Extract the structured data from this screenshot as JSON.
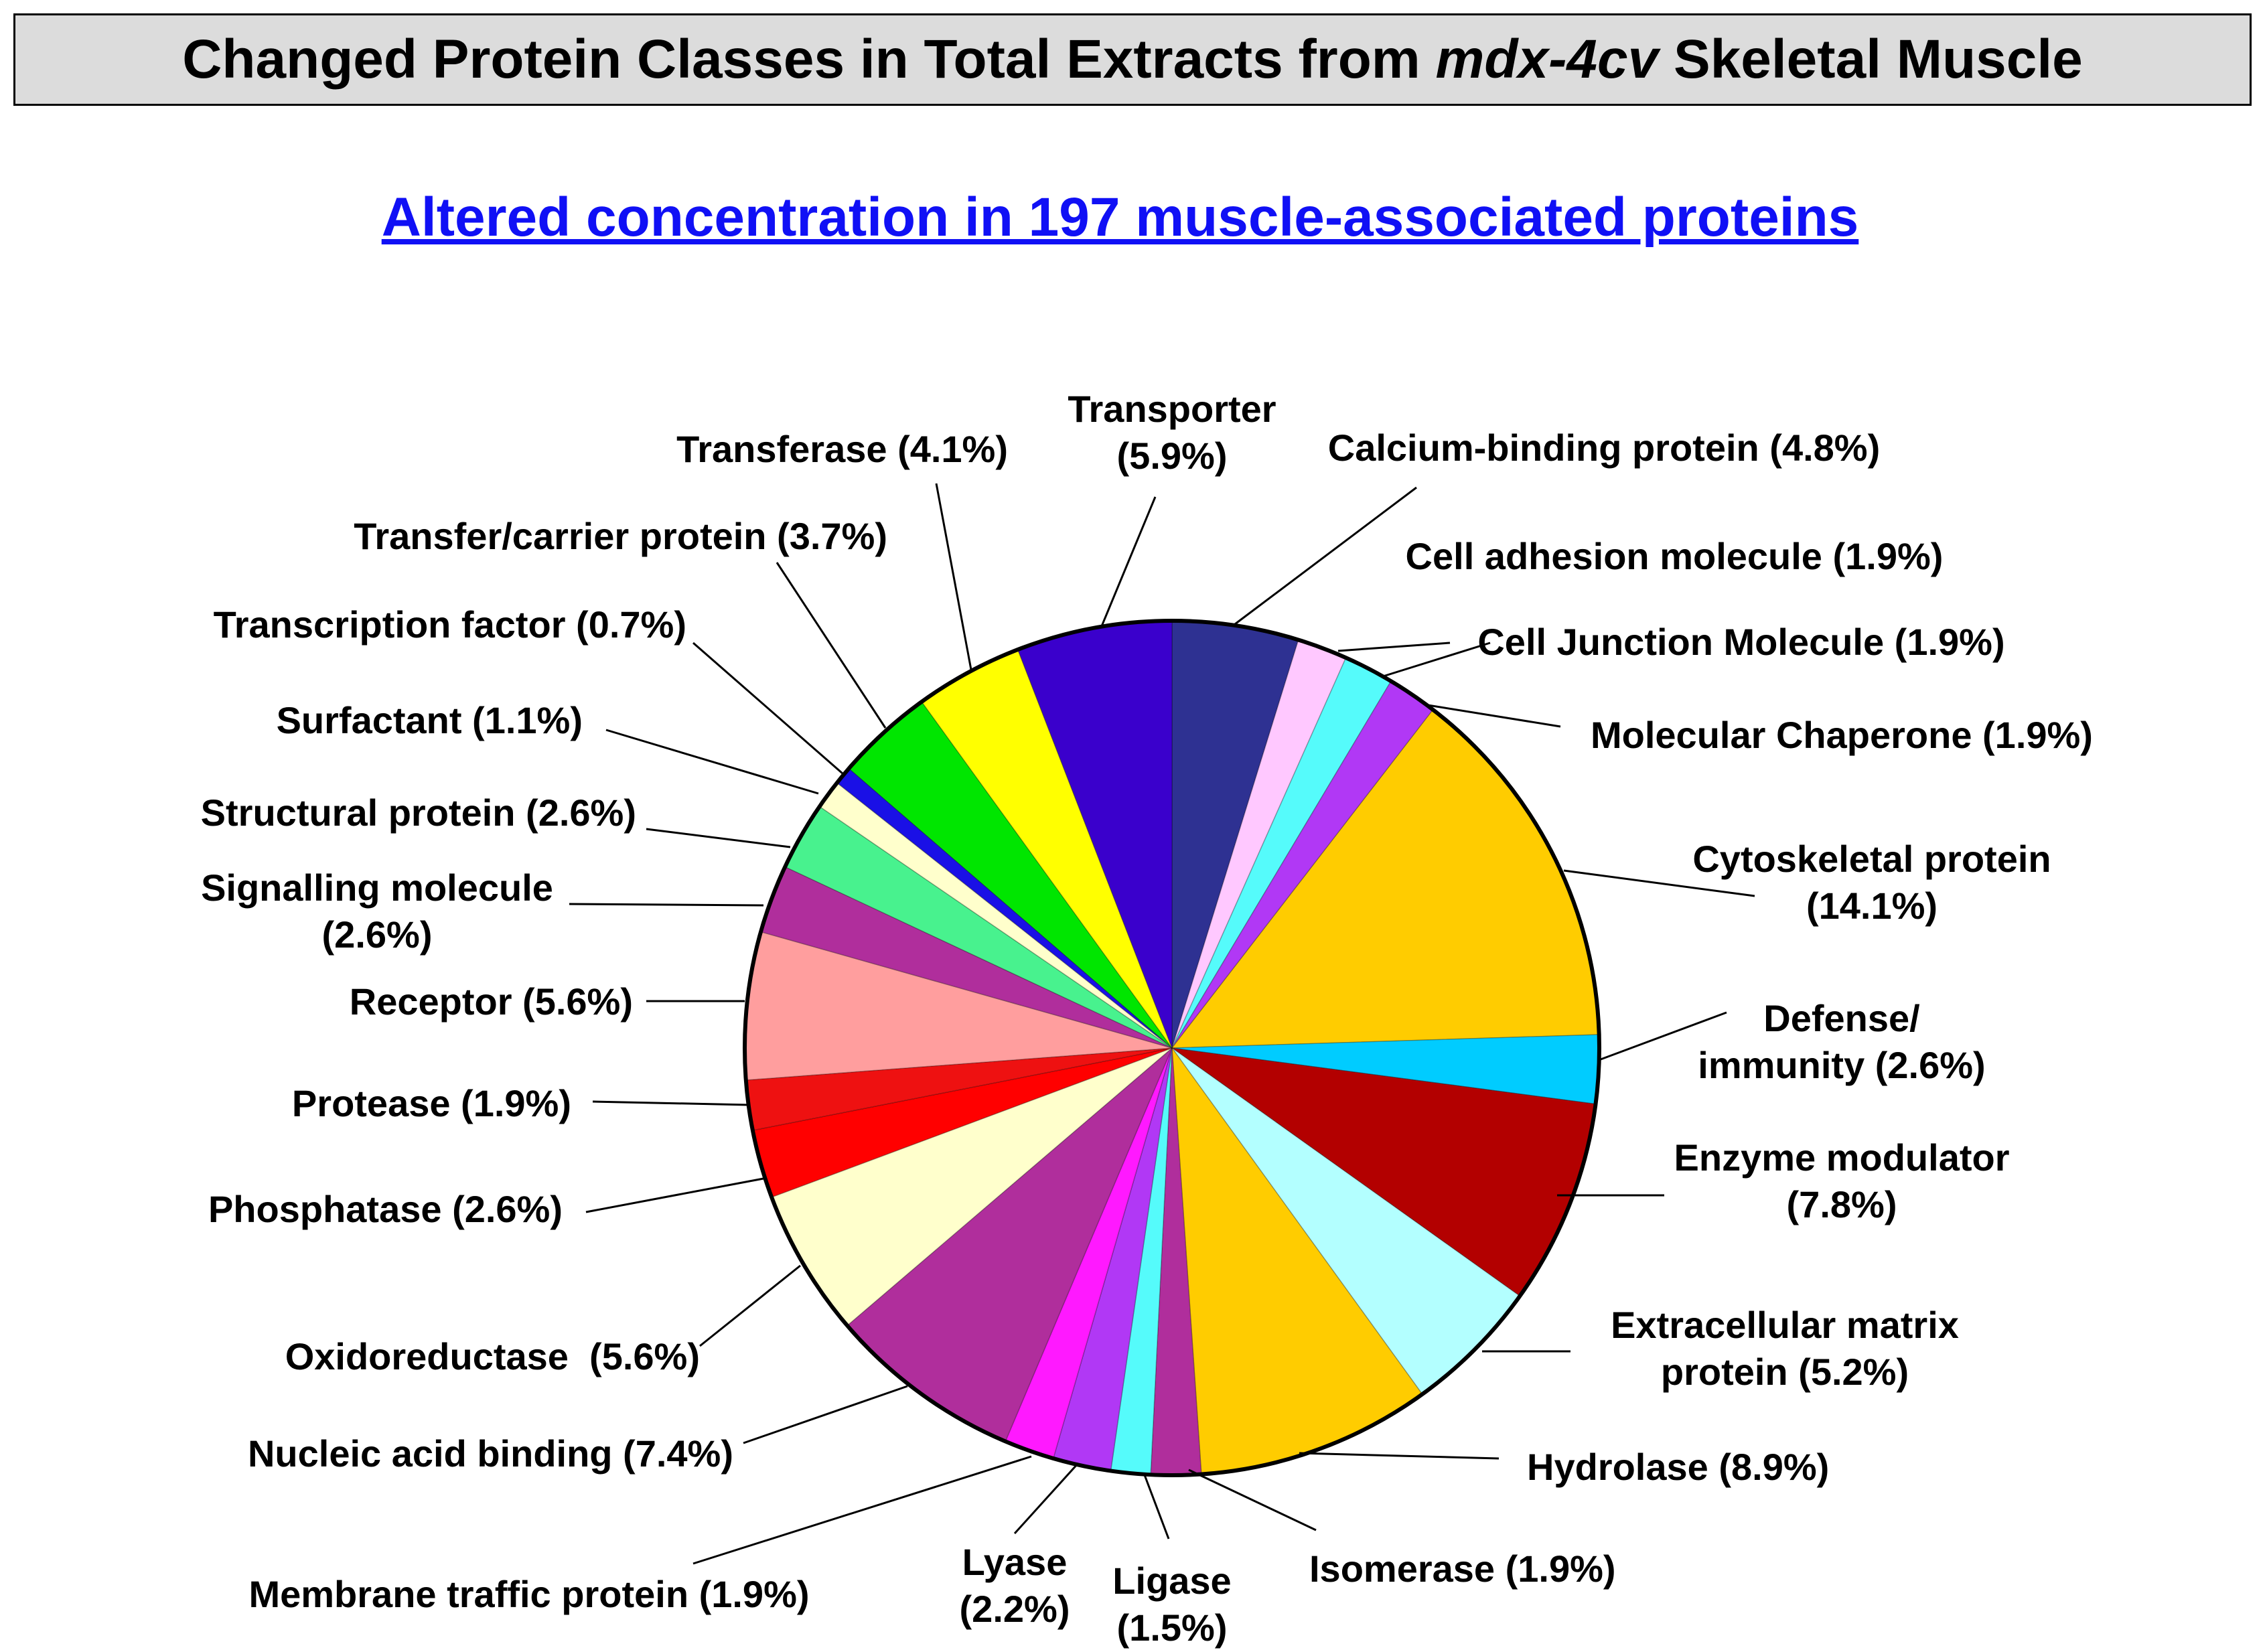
{
  "header": {
    "title_part1": "Changed Protein Classes in Total Extracts from ",
    "title_italic": "mdx-4cv",
    "title_part2": " Skeletal Muscle"
  },
  "subtitle": "Altered concentration in 197 muscle-associated proteins",
  "chart_data": {
    "type": "pie",
    "title": "Altered concentration in 197 muscle-associated proteins",
    "start": "12 o'clock",
    "direction": "clockwise",
    "slices": [
      {
        "name": "Calcium-binding protein",
        "label": [
          "Calcium-binding protein (4.8%)"
        ],
        "value": 4.8,
        "color": "#2e3192"
      },
      {
        "name": "Cell adhesion molecule",
        "label": [
          "Cell adhesion molecule (1.9%)"
        ],
        "value": 1.9,
        "color": "#ffc8ff"
      },
      {
        "name": "Cell Junction Molecule",
        "label": [
          "Cell Junction Molecule (1.9%)"
        ],
        "value": 1.9,
        "color": "#55fbfb"
      },
      {
        "name": "Molecular Chaperone",
        "label": [
          "Molecular Chaperone (1.9%)"
        ],
        "value": 1.9,
        "color": "#b138f5"
      },
      {
        "name": "Cytoskeletal protein",
        "label": [
          "Cytoskeletal protein",
          "(14.1%)"
        ],
        "value": 14.1,
        "color": "#ffcc00"
      },
      {
        "name": "Defense/immunity",
        "label": [
          "Defense/",
          "immunity (2.6%)"
        ],
        "value": 2.6,
        "color": "#00ccff"
      },
      {
        "name": "Enzyme modulator",
        "label": [
          "Enzyme modulator",
          "(7.8%)"
        ],
        "value": 7.8,
        "color": "#b30000"
      },
      {
        "name": "Extracellular matrix protein",
        "label": [
          "Extracellular matrix",
          "protein (5.2%)"
        ],
        "value": 5.2,
        "color": "#b3ffff"
      },
      {
        "name": "Hydrolase",
        "label": [
          "Hydrolase (8.9%)"
        ],
        "value": 8.9,
        "color": "#ffcc00"
      },
      {
        "name": "Isomerase",
        "label": [
          "Isomerase (1.9%)"
        ],
        "value": 1.9,
        "color": "#b02e9c"
      },
      {
        "name": "Ligase",
        "label": [
          "Ligase",
          "(1.5%)"
        ],
        "value": 1.5,
        "color": "#55fbfb"
      },
      {
        "name": "Lyase",
        "label": [
          "Lyase",
          "(2.2%)"
        ],
        "value": 2.2,
        "color": "#b138f5"
      },
      {
        "name": "Membrane traffic protein",
        "label": [
          "Membrane traffic protein (1.9%)"
        ],
        "value": 1.9,
        "color": "#ff19ff"
      },
      {
        "name": "Nucleic acid binding",
        "label": [
          "Nucleic acid binding (7.4%)"
        ],
        "value": 7.4,
        "color": "#b02e9c"
      },
      {
        "name": "Oxidoreductase",
        "label": [
          "Oxidoreductase  (5.6%)"
        ],
        "value": 5.6,
        "color": "#ffffcc"
      },
      {
        "name": "Phosphatase",
        "label": [
          "Phosphatase (2.6%)"
        ],
        "value": 2.6,
        "color": "#ff0000"
      },
      {
        "name": "Protease",
        "label": [
          "Protease (1.9%)"
        ],
        "value": 1.9,
        "color": "#ee1111"
      },
      {
        "name": "Receptor",
        "label": [
          "Receptor (5.6%)"
        ],
        "value": 5.6,
        "color": "#ff9e9e"
      },
      {
        "name": "Signalling molecule",
        "label": [
          "Signalling molecule",
          "(2.6%)"
        ],
        "value": 2.6,
        "color": "#b02e9c"
      },
      {
        "name": "Structural protein",
        "label": [
          "Structural protein (2.6%)"
        ],
        "value": 2.6,
        "color": "#48f28e"
      },
      {
        "name": "Surfactant",
        "label": [
          "Surfactant (1.1%)"
        ],
        "value": 1.1,
        "color": "#ffffcc"
      },
      {
        "name": "Transcription factor",
        "label": [
          "Transcription factor (0.7%)"
        ],
        "value": 0.7,
        "color": "#1a10e6"
      },
      {
        "name": "Transfer/carrier protein",
        "label": [
          "Transfer/carrier protein (3.7%)"
        ],
        "value": 3.7,
        "color": "#00e600"
      },
      {
        "name": "Transferase",
        "label": [
          "Transferase (4.1%)"
        ],
        "value": 4.1,
        "color": "#ffff00"
      },
      {
        "name": "Transporter",
        "label": [
          "Transporter",
          "(5.9%)"
        ],
        "value": 5.9,
        "color": "#3a00cc"
      }
    ]
  }
}
